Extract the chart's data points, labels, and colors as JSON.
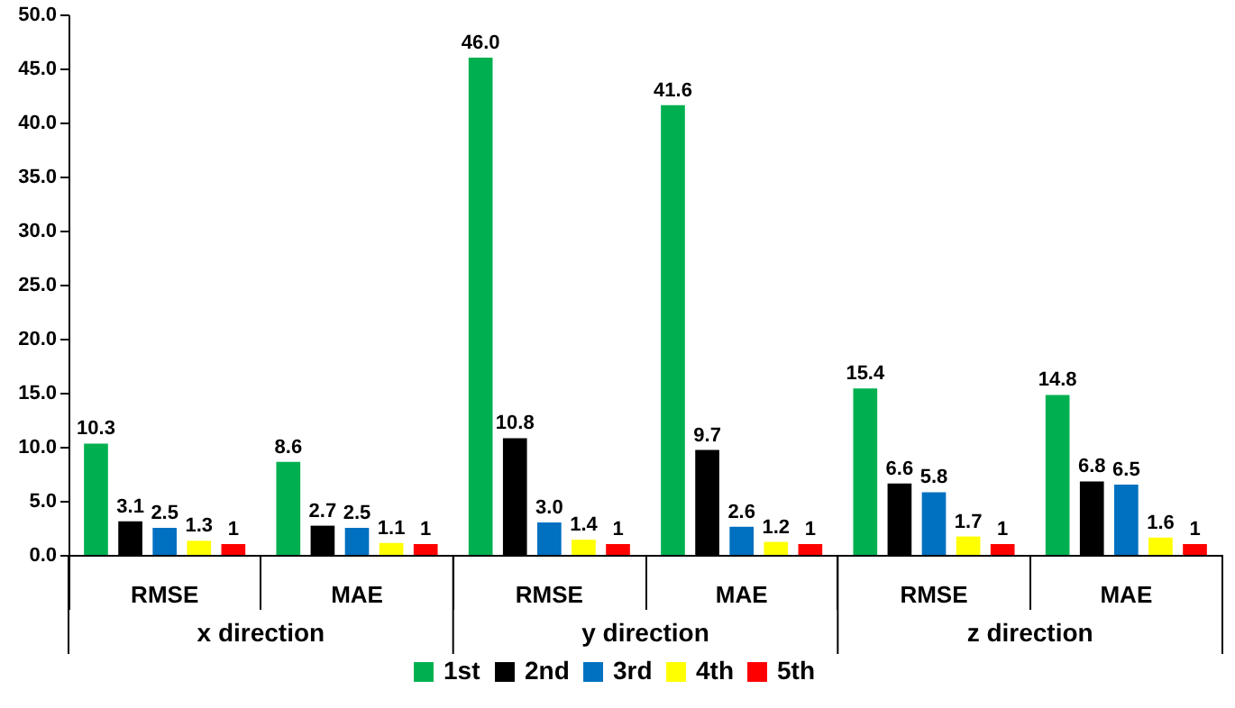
{
  "chart_data": {
    "type": "bar",
    "categories": [
      "RMSE",
      "MAE",
      "RMSE",
      "MAE",
      "RMSE",
      "MAE"
    ],
    "series": [
      {
        "name": "1st",
        "color": "#00b050",
        "values": [
          10.3,
          8.6,
          46.0,
          41.6,
          15.4,
          14.8
        ],
        "value_labels": [
          "10.3",
          "8.6",
          "46.0",
          "41.6",
          "15.4",
          "14.8"
        ]
      },
      {
        "name": "2nd",
        "color": "#000000",
        "values": [
          3.1,
          2.7,
          10.8,
          9.7,
          6.6,
          6.8
        ],
        "value_labels": [
          "3.1",
          "2.7",
          "10.8",
          "9.7",
          "6.6",
          "6.8"
        ]
      },
      {
        "name": "3rd",
        "color": "#0070c0",
        "values": [
          2.5,
          2.5,
          3.0,
          2.6,
          5.8,
          6.5
        ],
        "value_labels": [
          "2.5",
          "2.5",
          "3.0",
          "2.6",
          "5.8",
          "6.5"
        ]
      },
      {
        "name": "4th",
        "color": "#ffff00",
        "values": [
          1.3,
          1.1,
          1.4,
          1.2,
          1.7,
          1.6
        ],
        "value_labels": [
          "1.3",
          "1.1",
          "1.4",
          "1.2",
          "1.7",
          "1.6"
        ]
      },
      {
        "name": "5th",
        "color": "#ff0000",
        "values": [
          1,
          1,
          1,
          1,
          1,
          1
        ],
        "value_labels": [
          "1",
          "1",
          "1",
          "1",
          "1",
          "1"
        ]
      }
    ],
    "ylim": [
      0,
      50
    ],
    "yticks": [
      {
        "value": 0,
        "label": "0.0"
      },
      {
        "value": 5,
        "label": "5.0"
      },
      {
        "value": 10,
        "label": "10.0"
      },
      {
        "value": 15,
        "label": "15.0"
      },
      {
        "value": 20,
        "label": "20.0"
      },
      {
        "value": 25,
        "label": "25.0"
      },
      {
        "value": 30,
        "label": "30.0"
      },
      {
        "value": 35,
        "label": "35.0"
      },
      {
        "value": 40,
        "label": "40.0"
      },
      {
        "value": 45,
        "label": "45.0"
      },
      {
        "value": 50,
        "label": "50.0"
      }
    ],
    "annotations": [
      "x direction",
      "y  direction",
      "z  direction"
    ],
    "legend": "bottom",
    "grid": false
  }
}
